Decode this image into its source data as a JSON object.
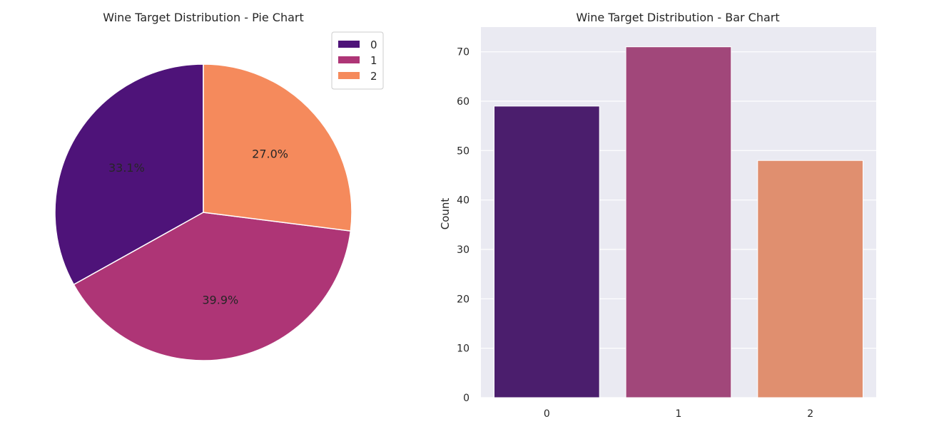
{
  "chart_data": [
    {
      "type": "pie",
      "title": "Wine Target Distribution - Pie Chart",
      "labels": [
        "0",
        "1",
        "2"
      ],
      "values": [
        33.1,
        39.9,
        27.0
      ],
      "value_labels": [
        "33.1%",
        "39.9%",
        "27.0%"
      ],
      "colors": [
        "#4e1379",
        "#ae3576",
        "#f58a5c"
      ],
      "start_angle_deg": 90,
      "legend": {
        "entries": [
          "0",
          "1",
          "2"
        ],
        "placement": "top-right"
      }
    },
    {
      "type": "bar",
      "title": "Wine Target Distribution - Bar Chart",
      "categories": [
        "0",
        "1",
        "2"
      ],
      "values": [
        59,
        71,
        48
      ],
      "colors": [
        "#4b1e6d",
        "#a1477a",
        "#e08f6f"
      ],
      "xlabel": "",
      "ylabel": "Count",
      "ylim": [
        0,
        75
      ],
      "yticks": [
        0,
        10,
        20,
        30,
        40,
        50,
        60,
        70
      ],
      "grid": true,
      "background": "#eaeaf2"
    }
  ]
}
